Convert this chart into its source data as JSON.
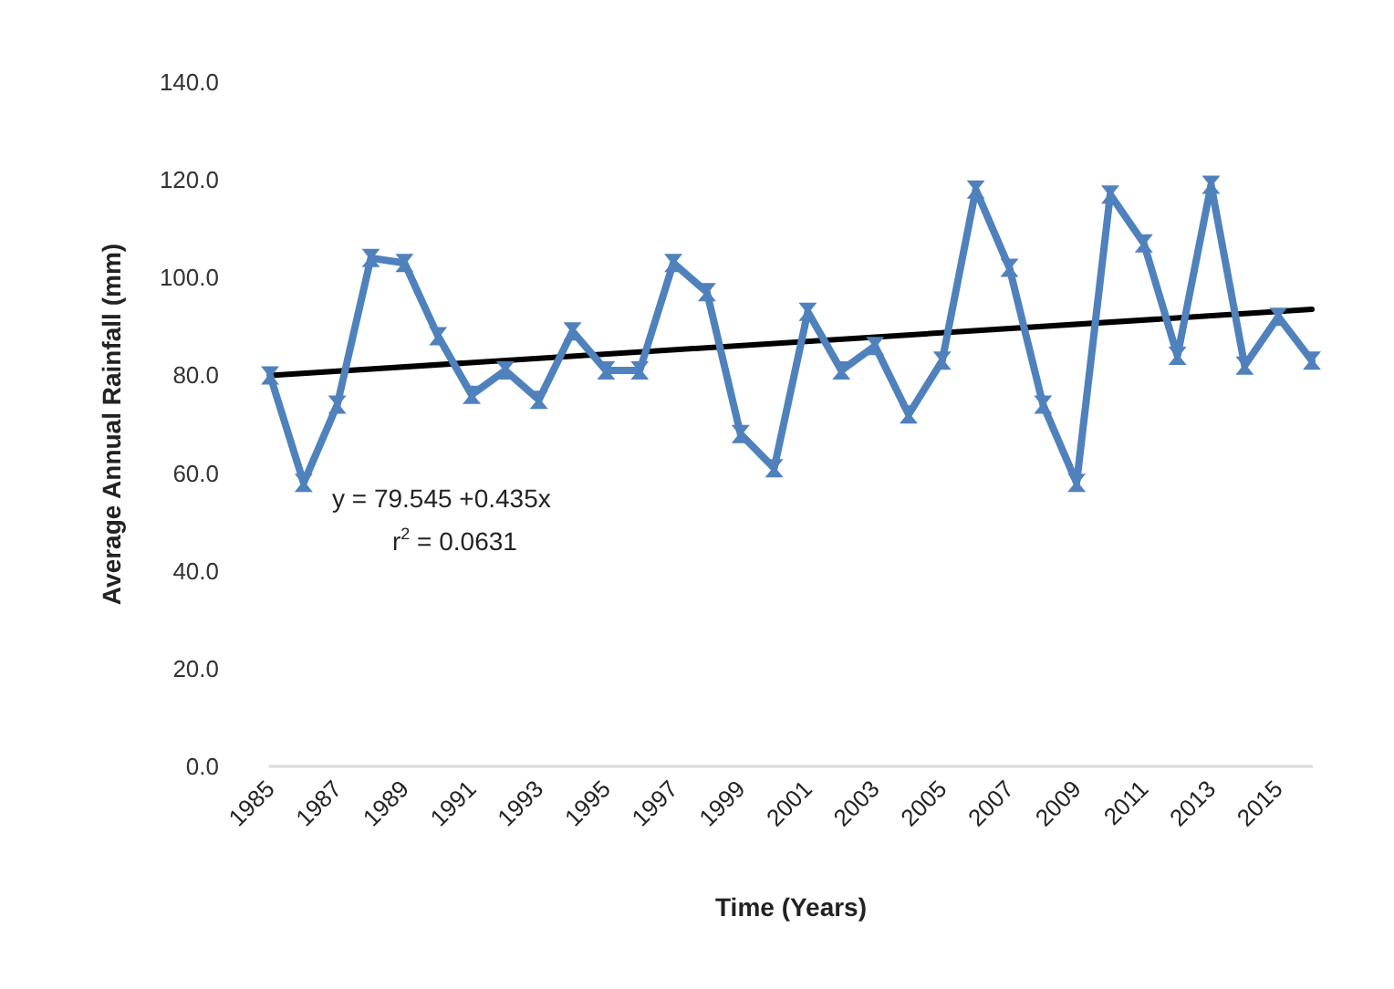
{
  "chart_data": {
    "type": "line",
    "xlabel": "Time (Years)",
    "ylabel": "Average Annual Rainfall (mm)",
    "categories": [
      "1985",
      null,
      "1987",
      null,
      "1989",
      null,
      "1991",
      null,
      "1993",
      null,
      "1995",
      null,
      "1997",
      null,
      "1999",
      null,
      "2001",
      null,
      "2003",
      null,
      "2005",
      null,
      "2007",
      null,
      "2009",
      null,
      "2011",
      null,
      "2013",
      null,
      "2015",
      null
    ],
    "series": [
      {
        "color": "#4f81bd",
        "marker": "cross",
        "values": [
          80,
          58,
          74,
          104,
          103,
          88,
          76,
          81,
          75,
          89,
          81,
          81,
          103,
          97,
          68,
          61,
          93,
          81,
          86,
          72,
          83,
          118,
          102,
          74,
          58,
          117,
          107,
          84,
          119,
          82,
          92,
          83
        ]
      },
      {
        "color": "#000000",
        "marker": "none",
        "values": [
          80.0,
          null,
          null,
          null,
          null,
          null,
          null,
          null,
          null,
          null,
          null,
          null,
          null,
          null,
          null,
          null,
          null,
          null,
          null,
          null,
          null,
          null,
          null,
          null,
          null,
          null,
          null,
          null,
          null,
          null,
          null,
          93.5
        ]
      }
    ],
    "ylim": [
      0,
      140
    ],
    "yticks": [
      {
        "value": 0,
        "label": "0.0"
      },
      {
        "value": 20,
        "label": "20.0"
      },
      {
        "value": 40,
        "label": "40.0"
      },
      {
        "value": 60,
        "label": "60.0"
      },
      {
        "value": 80,
        "label": "80.0"
      },
      {
        "value": 100,
        "label": "100.0"
      },
      {
        "value": 120,
        "label": "120.0"
      },
      {
        "value": 140,
        "label": "140.0"
      }
    ],
    "annotations": [
      "y = 79.545 +0.435x",
      "r$^{2}$ = 0.0631"
    ],
    "grid": false
  }
}
